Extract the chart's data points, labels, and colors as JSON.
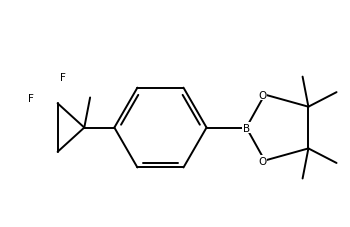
{
  "bg_color": "#ffffff",
  "line_color": "#000000",
  "lw": 1.4,
  "fs": 7.5,
  "figsize": [
    3.5,
    2.28
  ],
  "dpi": 100,
  "xlim": [
    -3.2,
    3.6
  ],
  "ylim": [
    -2.2,
    2.5
  ]
}
